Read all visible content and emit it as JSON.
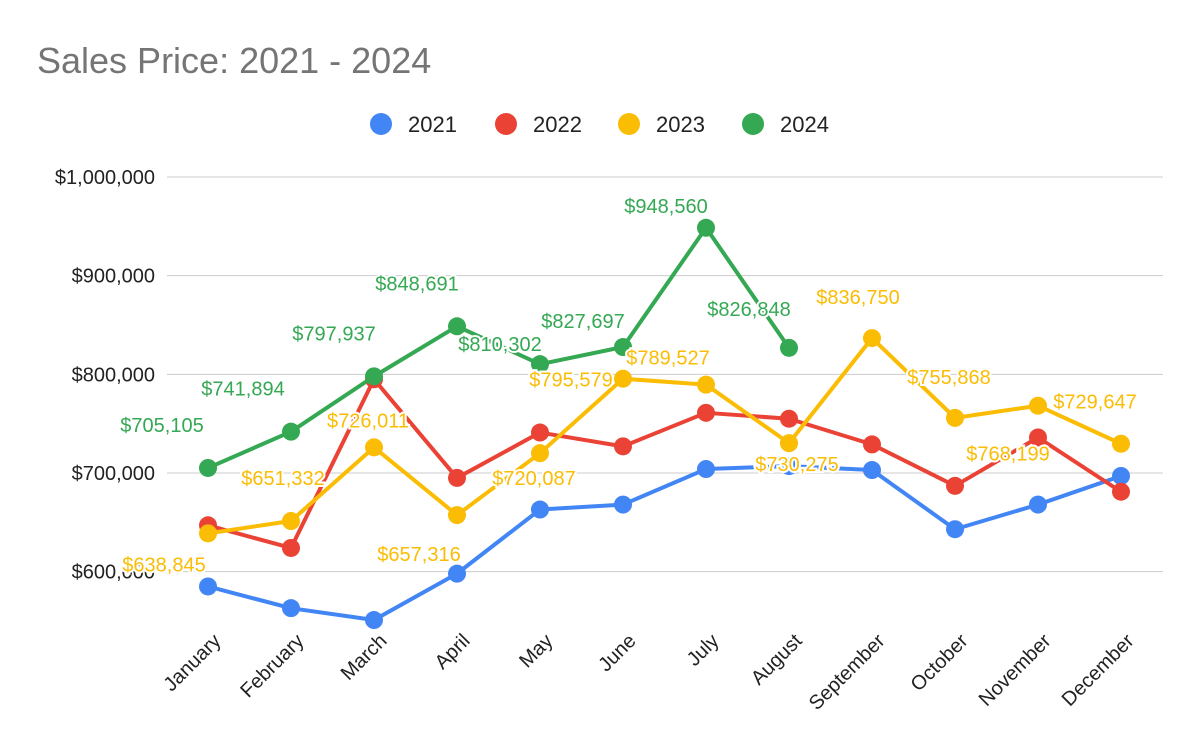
{
  "chart_data": {
    "type": "line",
    "title": "Sales Price: 2021 - 2024",
    "xlabel": "",
    "ylabel": "",
    "categories": [
      "January",
      "February",
      "March",
      "April",
      "May",
      "June",
      "July",
      "August",
      "September",
      "October",
      "November",
      "December"
    ],
    "ylim": [
      550000,
      1000000
    ],
    "yticks": [
      600000,
      700000,
      800000,
      900000,
      1000000
    ],
    "ytick_labels": [
      "$600,000",
      "$700,000",
      "$800,000",
      "$900,000",
      "$1,000,000"
    ],
    "grid": true,
    "legend_position": "top-center",
    "series": [
      {
        "name": "2021",
        "color": "#4285F4",
        "values": [
          585000,
          563000,
          551000,
          598000,
          663000,
          668000,
          704000,
          707000,
          703000,
          643000,
          668000,
          697000
        ],
        "labels": [
          null,
          null,
          null,
          null,
          null,
          null,
          null,
          null,
          null,
          null,
          null,
          null
        ]
      },
      {
        "name": "2022",
        "color": "#EA4335",
        "values": [
          647000,
          624000,
          795000,
          695000,
          741000,
          727000,
          761000,
          755000,
          729000,
          687000,
          736000,
          681000
        ],
        "labels": [
          null,
          null,
          null,
          null,
          null,
          null,
          null,
          null,
          null,
          null,
          null,
          null
        ]
      },
      {
        "name": "2023",
        "color": "#FBBC04",
        "values": [
          638845,
          651332,
          726011,
          657316,
          720087,
          795579,
          789527,
          730275,
          836750,
          755868,
          768199,
          729647
        ],
        "labels": [
          "$638,845",
          "$651,332",
          "$726,011",
          "$657,316",
          "$720,087",
          "$795,579",
          "$789,527",
          "$730,275",
          "$836,750",
          "$755,868",
          "$768,199",
          "$729,647"
        ]
      },
      {
        "name": "2024",
        "color": "#34A853",
        "values": [
          705105,
          741894,
          797937,
          848691,
          810302,
          827697,
          948560,
          826848,
          null,
          null,
          null,
          null
        ],
        "labels": [
          "$705,105",
          "$741,894",
          "$797,937",
          "$848,691",
          "$810,302",
          "$827,697",
          "$948,560",
          "$826,848",
          null,
          null,
          null,
          null
        ]
      }
    ]
  }
}
